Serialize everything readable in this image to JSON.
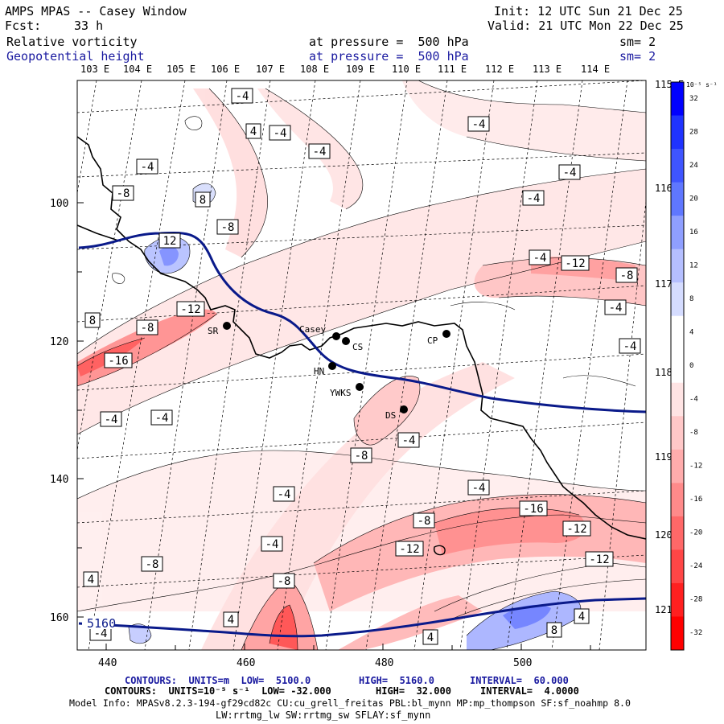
{
  "header": {
    "title": "AMPS MPAS -- Casey Window",
    "init": "Init: 12 UTC Sun 21 Dec 25",
    "fcst_label": "Fcst:",
    "fcst_value": "33 h",
    "valid": "Valid: 21 UTC Mon 22 Dec 25",
    "field1": "Relative vorticity",
    "field1_level": "at pressure =  500 hPa",
    "field1_sm": "sm= 2",
    "field2": "Geopotential height",
    "field2_level": "at pressure =  500 hPa",
    "field2_sm": "sm= 2"
  },
  "top_lon_labels": [
    "103 E",
    "104 E",
    "105 E",
    "106 E",
    "107 E",
    "108 E",
    "109 E",
    "110 E",
    "111 E",
    "112 E",
    "113 E",
    "114 E"
  ],
  "right_lon_labels": [
    "115 E",
    "116 E",
    "117 E",
    "118 E",
    "119 E",
    "120 E",
    "121 E"
  ],
  "x_axis_ticks": [
    "440",
    "460",
    "480",
    "500"
  ],
  "y_axis_ticks": [
    "100",
    "120",
    "140",
    "160"
  ],
  "stations": [
    {
      "name": "SR",
      "code": "SR"
    },
    {
      "name": "Casey",
      "code": "Casey"
    },
    {
      "name": "CS",
      "code": "CS"
    },
    {
      "name": "HN",
      "code": "HN"
    },
    {
      "name": "YWKS",
      "code": "YWKS"
    },
    {
      "name": "CP",
      "code": "CP"
    },
    {
      "name": "DS",
      "code": "DS"
    }
  ],
  "contour_labels": [
    "-4",
    "4",
    "-4",
    "-4",
    "-4",
    "-4",
    "-4",
    "-8",
    "8",
    "-8",
    "12",
    "-12",
    "8",
    "-8",
    "-16",
    "-4",
    "-4",
    "-4",
    "-12",
    "-8",
    "-4",
    "-4",
    "-8",
    "-4",
    "-4",
    "-4",
    "-16",
    "-8",
    "-12",
    "-12",
    "-8",
    "-4",
    "-8",
    "4",
    "4",
    "-4",
    "4",
    "4",
    "8",
    "-12",
    "-4"
  ],
  "height_contour_label": "5160",
  "colorbar": {
    "unit": "10⁻⁵ s⁻¹",
    "ticks": [
      "32",
      "28",
      "24",
      "20",
      "16",
      "12",
      "8",
      "4",
      "0",
      "-4",
      "-8",
      "-12",
      "-16",
      "-20",
      "-24",
      "-28",
      "-32"
    ],
    "colors": [
      "#0000ff",
      "#1f33ff",
      "#3f55ff",
      "#5f77ff",
      "#8f9fff",
      "#b5bfff",
      "#d5dcff",
      "#ffffff",
      "#ffffff",
      "#ffe4e4",
      "#ffc8c8",
      "#ffacac",
      "#ff8a8a",
      "#ff6868",
      "#ff4646",
      "#ff2020",
      "#ff0000"
    ]
  },
  "footer": {
    "line1_a": "CONTOURS:  UNITS=m  LOW=  5100.0",
    "line1_b": "HIGH=  5160.0",
    "line1_c": "INTERVAL=  60.000",
    "line2_a": "CONTOURS:  UNITS=10⁻⁵ s⁻¹  LOW= -32.000",
    "line2_b": "HIGH=  32.000",
    "line2_c": "INTERVAL=  4.0000",
    "line3": "Model Info: MPASv8.2.3-194-gf29cd82c CU:cu_grell_freitas PBL:bl_mynn MP:mp_thompson SF:sf_noahmp 8.0",
    "line4": "LW:rrtmg_lw SW:rrtmg_sw SFLAY:sf_mynn"
  }
}
